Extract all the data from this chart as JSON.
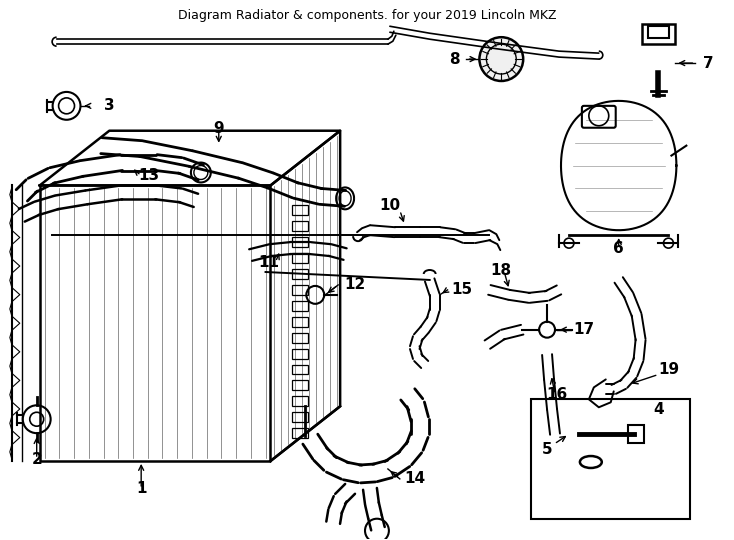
{
  "title": "Diagram Radiator & components. for your 2019 Lincoln MKZ",
  "bg": "#ffffff",
  "lc": "#000000",
  "figsize": [
    7.34,
    5.4
  ],
  "dpi": 100,
  "label_fontsize": 11,
  "title_fontsize": 9
}
